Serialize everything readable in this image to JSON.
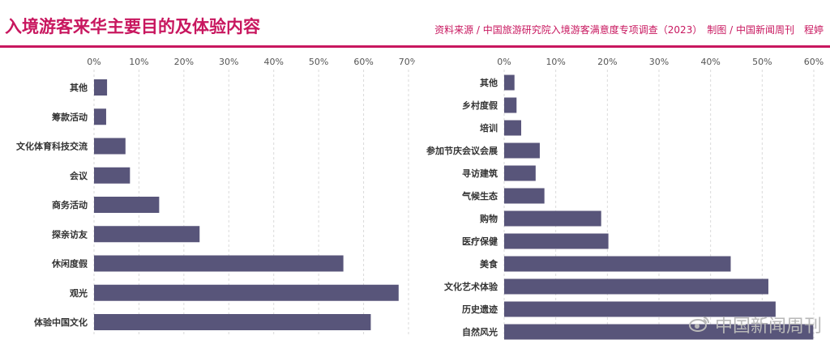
{
  "header": {
    "title": "入境游客来华主要目的及体验内容",
    "source": "资料来源 / 中国旅游研究院入境游客满意度专项调查（2023）　制图 / 中国新闻周刊　程婷"
  },
  "watermark": {
    "text": "中国新闻周刊",
    "icon": "weibo-icon"
  },
  "colors": {
    "accent": "#c8175f",
    "bar": "#58557a",
    "grid": "#dadada"
  },
  "chart_data": [
    {
      "type": "bar",
      "orientation": "horizontal",
      "title": "",
      "xlabel": "",
      "ylabel": "",
      "ticks": [
        "0%",
        "10%",
        "20%",
        "30%",
        "40%",
        "50%",
        "60%",
        "70%"
      ],
      "xlim": [
        0,
        70
      ],
      "grid": true,
      "categories": [
        "其他",
        "筹款活动",
        "文化体育科技交流",
        "会议",
        "商务活动",
        "探亲访友",
        "休闲度假",
        "观光",
        "体验中国文化"
      ],
      "values": [
        2.9,
        2.7,
        7.0,
        8.0,
        14.5,
        23.5,
        55.5,
        67.8,
        61.6
      ]
    },
    {
      "type": "bar",
      "orientation": "horizontal",
      "title": "",
      "xlabel": "",
      "ylabel": "",
      "ticks": [
        "0%",
        "10%",
        "20%",
        "30%",
        "40%",
        "50%",
        "60%"
      ],
      "xlim": [
        0,
        60
      ],
      "grid": true,
      "categories": [
        "其他",
        "乡村度假",
        "培训",
        "参加节庆会议会展",
        "寻访建筑",
        "气候生态",
        "购物",
        "医疗保健",
        "美食",
        "文化艺术体验",
        "历史遗迹",
        "自然风光"
      ],
      "values": [
        2.0,
        2.4,
        3.3,
        6.9,
        6.1,
        7.8,
        18.8,
        20.2,
        43.9,
        51.2,
        52.6,
        59.9
      ]
    }
  ]
}
